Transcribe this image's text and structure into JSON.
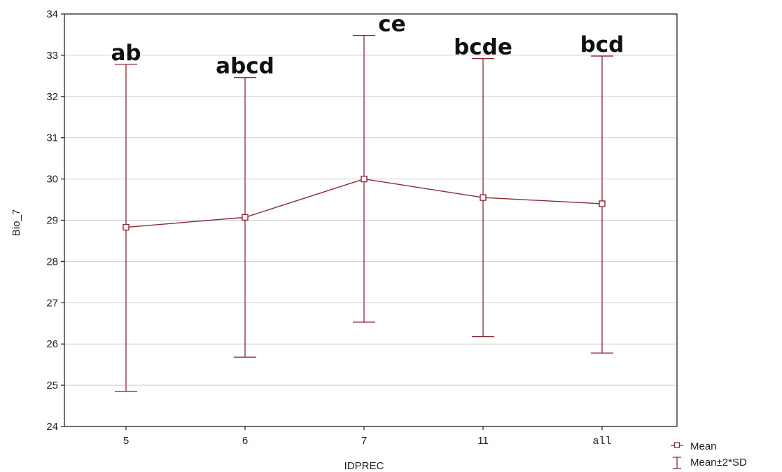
{
  "chart_data": {
    "type": "line",
    "title": "",
    "xlabel": "IDPREC",
    "ylabel": "Bio_7",
    "categories": [
      "5",
      "6",
      "7",
      "11",
      "all"
    ],
    "ylim": [
      24,
      34
    ],
    "yticks": [
      24,
      25,
      26,
      27,
      28,
      29,
      30,
      31,
      32,
      33,
      34
    ],
    "grid": true,
    "legend_position": "bottom-right",
    "series": [
      {
        "name": "Mean",
        "values": [
          28.83,
          29.07,
          30.0,
          29.55,
          29.4
        ],
        "lower": [
          24.85,
          25.68,
          26.53,
          26.18,
          25.78
        ],
        "upper": [
          32.78,
          32.46,
          33.48,
          32.92,
          32.98
        ]
      }
    ],
    "error_bar_label": "Mean±2*SD",
    "group_labels": [
      "ab",
      "abcd",
      "ce",
      "bcde",
      "bcd"
    ],
    "colors": {
      "series": "#8b2a35",
      "grid": "#cfcfcf",
      "axis": "#222222"
    }
  }
}
